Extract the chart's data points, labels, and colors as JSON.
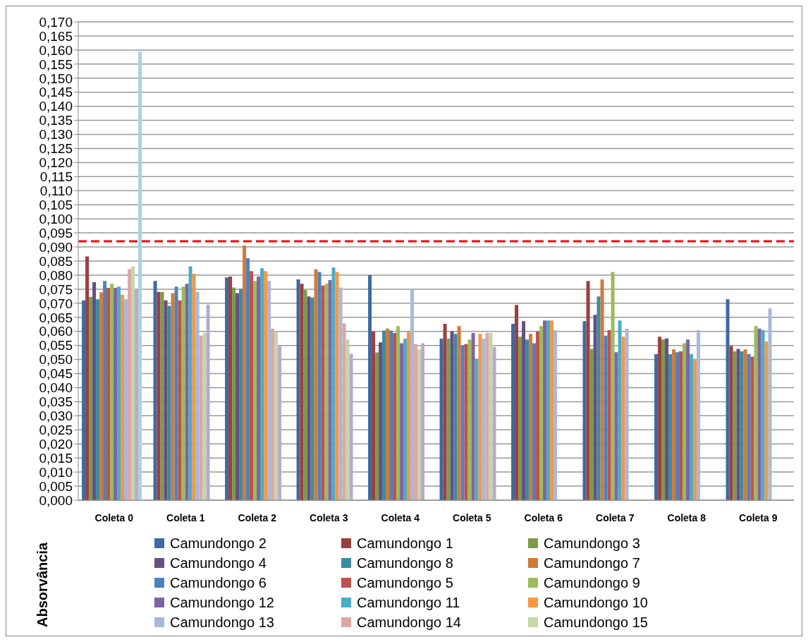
{
  "chart_data": {
    "type": "bar",
    "ylabel": "Absorvância",
    "categories": [
      "Coleta 0",
      "Coleta 1",
      "Coleta 2",
      "Coleta 3",
      "Coleta 4",
      "Coleta 5",
      "Coleta 6",
      "Coleta 7",
      "Coleta 8",
      "Coleta 9"
    ],
    "series": [
      {
        "name": "Camundongo 2",
        "color": "#3d6aa0",
        "values": [
          0.071,
          0.0779,
          0.0792,
          0.0785,
          0.08,
          0.0574,
          0.0627,
          0.0636,
          0.0519,
          0.0714
        ]
      },
      {
        "name": "Camundongo 1",
        "color": "#9c3f3f",
        "values": [
          0.0866,
          0.074,
          0.0795,
          0.0769,
          0.06,
          0.0627,
          0.0694,
          0.0779,
          0.0581,
          0.0548
        ]
      },
      {
        "name": "Camundongo 3",
        "color": "#7e9a48",
        "values": [
          0.0723,
          0.074,
          0.0756,
          0.0747,
          0.0525,
          0.0574,
          0.0581,
          0.0538,
          0.0571,
          0.0529
        ]
      },
      {
        "name": "Camundongo 4",
        "color": "#654f83",
        "values": [
          0.0775,
          0.071,
          0.0736,
          0.0724,
          0.0561,
          0.06,
          0.0636,
          0.0659,
          0.0575,
          0.0538
        ]
      },
      {
        "name": "Camundongo 8",
        "color": "#3a8ba1",
        "values": [
          0.0714,
          0.0691,
          0.0751,
          0.072,
          0.0603,
          0.0591,
          0.0571,
          0.0724,
          0.0519,
          0.0529
        ]
      },
      {
        "name": "Camundongo 7",
        "color": "#d07b3a",
        "values": [
          0.0739,
          0.0736,
          0.0905,
          0.0821,
          0.061,
          0.0619,
          0.0591,
          0.0785,
          0.0536,
          0.0536
        ]
      },
      {
        "name": "Camundongo 6",
        "color": "#4f81bd",
        "values": [
          0.0779,
          0.0759,
          0.086,
          0.0811,
          0.0603,
          0.055,
          0.0558,
          0.0585,
          0.0526,
          0.0519
        ]
      },
      {
        "name": "Camundongo 5",
        "color": "#c0504d",
        "values": [
          0.0755,
          0.071,
          0.0814,
          0.0763,
          0.0594,
          0.0555,
          0.06,
          0.0604,
          0.0529,
          0.051
        ]
      },
      {
        "name": "Camundongo 9",
        "color": "#9bbb59",
        "values": [
          0.0769,
          0.0759,
          0.0779,
          0.0769,
          0.0619,
          0.0571,
          0.0619,
          0.0811,
          0.0558,
          0.0619
        ]
      },
      {
        "name": "Camundongo 12",
        "color": "#8064a2",
        "values": [
          0.0755,
          0.0769,
          0.0795,
          0.0782,
          0.0558,
          0.0594,
          0.0639,
          0.0526,
          0.0571,
          0.061
        ]
      },
      {
        "name": "Camundongo 11",
        "color": "#4bacc6",
        "values": [
          0.0759,
          0.0831,
          0.0824,
          0.0827,
          0.0574,
          0.0503,
          0.0639,
          0.0639,
          0.0519,
          0.0604
        ]
      },
      {
        "name": "Camundongo 10",
        "color": "#f79646",
        "values": [
          0.073,
          0.0805,
          0.0814,
          0.0811,
          0.06,
          0.0591,
          0.0639,
          0.0581,
          0.0503,
          0.0564
        ]
      },
      {
        "name": "Camundongo 13",
        "color": "#a9b8da",
        "values": [
          0.0714,
          0.074,
          0.0779,
          0.0756,
          0.0751,
          0.0574,
          0.0604,
          0.061,
          0.0604,
          0.0682
        ]
      },
      {
        "name": "Camundongo 14",
        "color": "#dba7a6",
        "values": [
          0.0821,
          0.0585,
          0.061,
          0.0629,
          0.0555,
          0.0594,
          null,
          null,
          null,
          null
        ]
      },
      {
        "name": "Camundongo 15",
        "color": "#c5d6a7",
        "values": [
          0.0831,
          0.0594,
          0.0599,
          0.0571,
          0.0536,
          0.0594,
          null,
          null,
          null,
          null
        ]
      },
      {
        "color": "#b9aacb",
        "values": [
          0.0747,
          0.0695,
          0.0548,
          0.052,
          0.0558,
          0.0545,
          null,
          null,
          null,
          null
        ]
      },
      {
        "color": "#a8d3e0",
        "values": [
          0.1594,
          null,
          null,
          null,
          null,
          null,
          null,
          null,
          null,
          null
        ]
      }
    ],
    "ylim": [
      0,
      0.17
    ],
    "yticks": [
      {
        "value": 0,
        "label": "0,000"
      },
      {
        "value": 0.005,
        "label": "0,005"
      },
      {
        "value": 0.01,
        "label": "0,010"
      },
      {
        "value": 0.015,
        "label": "0,015"
      },
      {
        "value": 0.02,
        "label": "0,020"
      },
      {
        "value": 0.025,
        "label": "0,025"
      },
      {
        "value": 0.03,
        "label": "0,030"
      },
      {
        "value": 0.035,
        "label": "0,035"
      },
      {
        "value": 0.04,
        "label": "0,040"
      },
      {
        "value": 0.045,
        "label": "0,045"
      },
      {
        "value": 0.05,
        "label": "0,050"
      },
      {
        "value": 0.055,
        "label": "0,055"
      },
      {
        "value": 0.06,
        "label": "0,060"
      },
      {
        "value": 0.065,
        "label": "0,065"
      },
      {
        "value": 0.07,
        "label": "0,070"
      },
      {
        "value": 0.075,
        "label": "0,075"
      },
      {
        "value": 0.08,
        "label": "0,080"
      },
      {
        "value": 0.085,
        "label": "0,085"
      },
      {
        "value": 0.09,
        "label": "0,090"
      },
      {
        "value": 0.095,
        "label": "0,095"
      },
      {
        "value": 0.1,
        "label": "0,100"
      },
      {
        "value": 0.105,
        "label": "0,105"
      },
      {
        "value": 0.11,
        "label": "0,110"
      },
      {
        "value": 0.115,
        "label": "0,115"
      },
      {
        "value": 0.12,
        "label": "0,120"
      },
      {
        "value": 0.125,
        "label": "0,125"
      },
      {
        "value": 0.13,
        "label": "0,130"
      },
      {
        "value": 0.135,
        "label": "0,135"
      },
      {
        "value": 0.14,
        "label": "0,140"
      },
      {
        "value": 0.145,
        "label": "0,145"
      },
      {
        "value": 0.15,
        "label": "0,150"
      },
      {
        "value": 0.155,
        "label": "0,155"
      },
      {
        "value": 0.16,
        "label": "0,160"
      },
      {
        "value": 0.165,
        "label": "0,165"
      },
      {
        "value": 0.17,
        "label": "0,170"
      }
    ],
    "ref_lines": [
      {
        "axis": "y",
        "value": 0.092,
        "color": "#ff0000",
        "line_style": "dashed"
      }
    ],
    "grid": "y",
    "legend": "bottom"
  }
}
